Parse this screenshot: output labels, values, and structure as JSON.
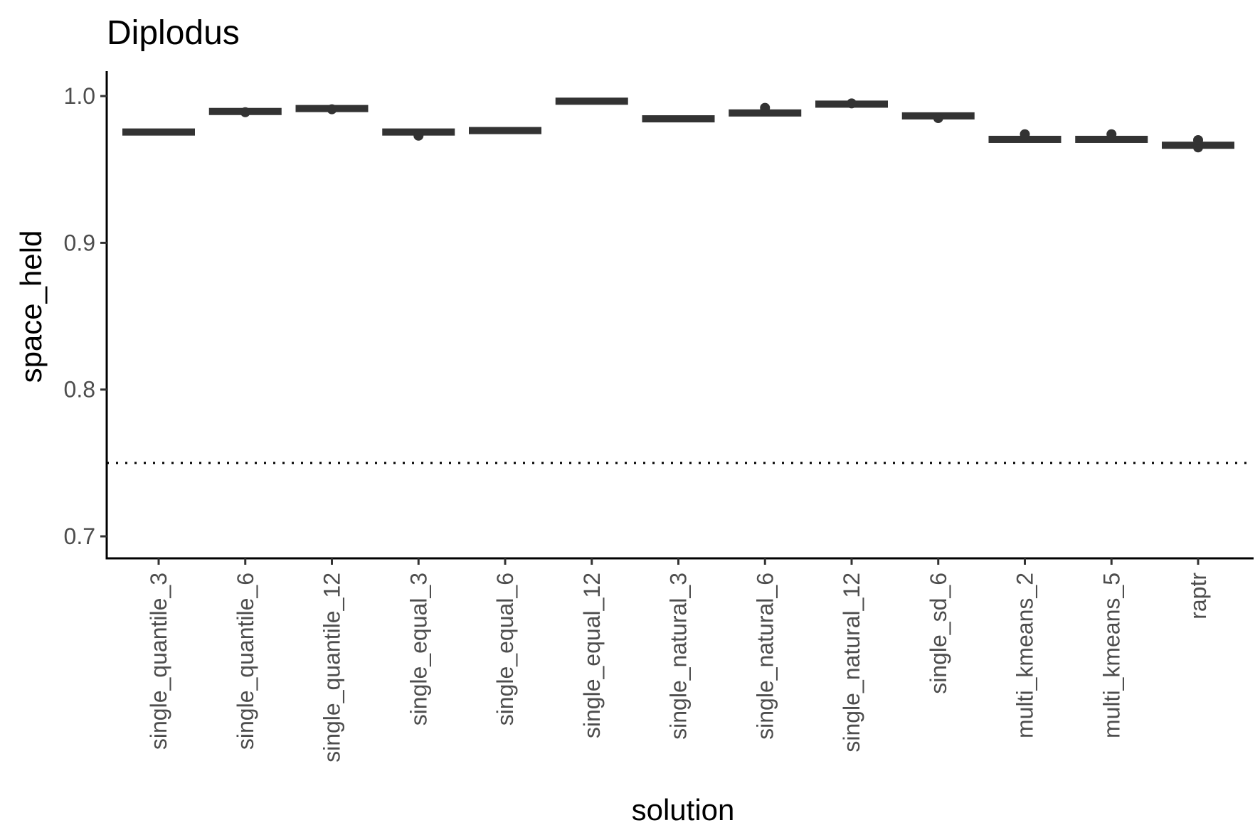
{
  "chart_data": {
    "type": "box",
    "title": "Diplodus",
    "xlabel": "solution",
    "ylabel": "space_held",
    "ylim": [
      0.685,
      1.017
    ],
    "yticks": [
      0.7,
      0.8,
      0.9,
      1.0
    ],
    "ytick_labels": [
      "0.7",
      "0.8",
      "0.9",
      "1.0"
    ],
    "reference_line": {
      "y": 0.75,
      "style": "dotted"
    },
    "grid": false,
    "categories": [
      "single_quantile_3",
      "single_quantile_6",
      "single_quantile_12",
      "single_equal_3",
      "single_equal_6",
      "single_equal_12",
      "single_natural_3",
      "single_natural_6",
      "single_natural_12",
      "single_sd_6",
      "multi_kmeans_2",
      "multi_kmeans_5",
      "raptr"
    ],
    "boxes": [
      {
        "q1": 0.975,
        "median": 0.976,
        "q3": 0.976,
        "outliers": []
      },
      {
        "q1": 0.989,
        "median": 0.99,
        "q3": 0.99,
        "outliers": [
          0.989
        ]
      },
      {
        "q1": 0.991,
        "median": 0.992,
        "q3": 0.992,
        "outliers": [
          0.991
        ]
      },
      {
        "q1": 0.975,
        "median": 0.975,
        "q3": 0.976,
        "outliers": [
          0.973
        ]
      },
      {
        "q1": 0.976,
        "median": 0.977,
        "q3": 0.977,
        "outliers": []
      },
      {
        "q1": 0.996,
        "median": 0.997,
        "q3": 0.997,
        "outliers": []
      },
      {
        "q1": 0.984,
        "median": 0.985,
        "q3": 0.985,
        "outliers": []
      },
      {
        "q1": 0.988,
        "median": 0.989,
        "q3": 0.989,
        "outliers": [
          0.992
        ]
      },
      {
        "q1": 0.994,
        "median": 0.995,
        "q3": 0.995,
        "outliers": [
          0.995
        ]
      },
      {
        "q1": 0.986,
        "median": 0.987,
        "q3": 0.987,
        "outliers": [
          0.985
        ]
      },
      {
        "q1": 0.97,
        "median": 0.97,
        "q3": 0.971,
        "outliers": [
          0.974
        ]
      },
      {
        "q1": 0.97,
        "median": 0.97,
        "q3": 0.971,
        "outliers": [
          0.974
        ]
      },
      {
        "q1": 0.966,
        "median": 0.967,
        "q3": 0.967,
        "outliers": [
          0.965,
          0.97
        ]
      }
    ]
  }
}
